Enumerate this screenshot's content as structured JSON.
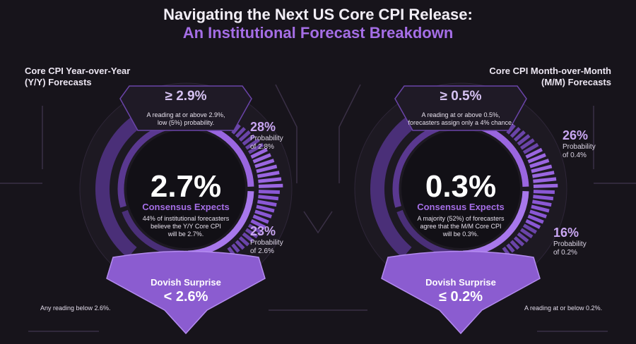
{
  "title": {
    "line1": "Navigating the Next US Core CPI Release:",
    "line2": "An Institutional Forecast Breakdown"
  },
  "colors": {
    "background": "#17141b",
    "accent": "#a56ee6",
    "ring": "#7a4cc0",
    "dark_purple": "#4a2f78"
  },
  "yoy": {
    "heading": [
      "Core CPI Year-over-Year",
      "(Y/Y) Forecasts"
    ],
    "upper": {
      "value": "≥ 2.9%",
      "desc": [
        "A reading at or above 2.9%,",
        "low (5%) probability."
      ]
    },
    "consensus": {
      "value": "2.7%",
      "label": "Consensus Expects",
      "desc": [
        "44% of institutional forecasters",
        "believe the Y/Y Core CPI",
        "will be 2.7%."
      ]
    },
    "prob_high": {
      "pct": "28%",
      "label": [
        "Probability",
        "of 2.8%"
      ]
    },
    "prob_low": {
      "pct": "23%",
      "label": [
        "Probability",
        "of 2.6%"
      ]
    },
    "dovish": {
      "label": "Dovish Surprise",
      "value": "< 2.6%"
    },
    "note": "Any reading below 2.6%."
  },
  "mom": {
    "heading": [
      "Core CPI Month-over-Month",
      "(M/M) Forecasts"
    ],
    "upper": {
      "value": "≥ 0.5%",
      "desc": [
        "A reading at or above 0.5%,",
        "forecasters assign only a 4% chance."
      ]
    },
    "consensus": {
      "value": "0.3%",
      "label": "Consensus Expects",
      "desc": [
        "A majority (52%) of forecasters",
        "agree that the M/M Core CPI",
        "will be 0.3%."
      ]
    },
    "prob_high": {
      "pct": "26%",
      "label": [
        "Probability",
        "of 0.4%"
      ]
    },
    "prob_low": {
      "pct": "16%",
      "label": [
        "Probability",
        "of 0.2%"
      ]
    },
    "dovish": {
      "label": "Dovish Surprise",
      "value": "≤ 0.2%"
    },
    "note": "A reading at or below 0.2%."
  }
}
